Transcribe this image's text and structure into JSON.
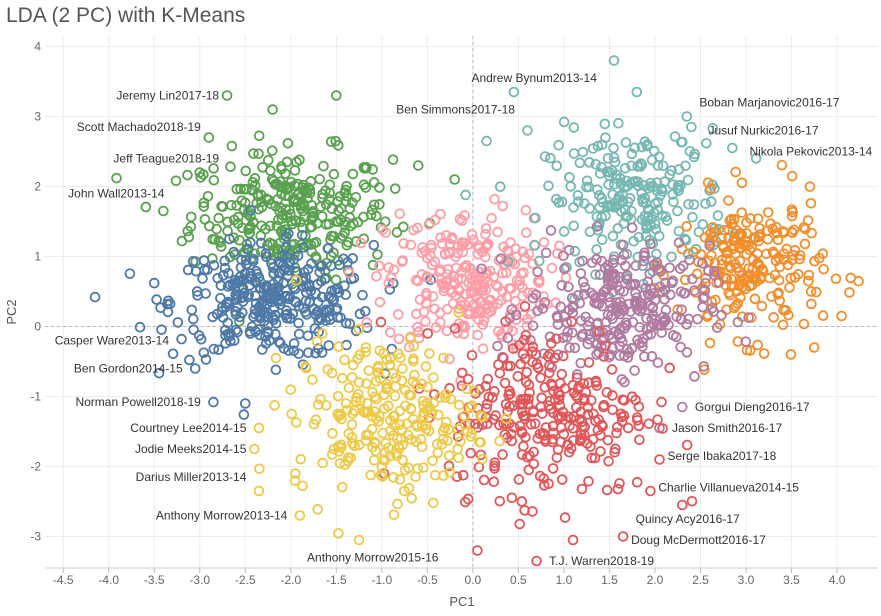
{
  "chart_data": {
    "type": "scatter",
    "title": "LDA (2  PC) with K-Means",
    "xlabel": "PC1",
    "ylabel": "PC2",
    "xlim": [
      -4.7,
      4.45
    ],
    "ylim": [
      -3.45,
      4.15
    ],
    "xticks": [
      -4.5,
      -4.0,
      -3.5,
      -3.0,
      -2.5,
      -2.0,
      -1.5,
      -1.0,
      -0.5,
      0.0,
      0.5,
      1.0,
      1.5,
      2.0,
      2.5,
      3.0,
      3.5,
      4.0
    ],
    "yticks": [
      -3,
      -2,
      -1,
      0,
      1,
      2,
      3,
      4
    ],
    "tick_labels_x": [
      "-4.5",
      "-4.0",
      "-3.5",
      "-3.0",
      "-2.5",
      "-2.0",
      "-1.5",
      "-1.0",
      "-0.5",
      "0.0",
      "0.5",
      "1.0",
      "1.5",
      "2.0",
      "2.5",
      "3.0",
      "3.5",
      "4.0"
    ],
    "tick_labels_y": [
      "-3",
      "-2",
      "-1",
      "0",
      "1",
      "2",
      "3",
      "4"
    ],
    "grid": true,
    "legend": "none",
    "marker": "open-circle",
    "series": [
      {
        "color": "#59a14f",
        "cx": -2.0,
        "cy": 1.6,
        "sx": 0.55,
        "sy": 0.45,
        "n": 300,
        "outliers": [
          [
            -2.7,
            3.3
          ],
          [
            -2.9,
            2.7
          ],
          [
            -3.0,
            2.2
          ],
          [
            -3.4,
            1.65
          ],
          [
            -2.2,
            3.1
          ],
          [
            -1.5,
            3.3
          ],
          [
            -0.2,
            2.1
          ],
          [
            -0.6,
            2.3
          ]
        ]
      },
      {
        "color": "#4e79a7",
        "cx": -2.2,
        "cy": 0.35,
        "sx": 0.55,
        "sy": 0.4,
        "n": 320,
        "outliers": [
          [
            -4.15,
            0.42
          ],
          [
            -3.5,
            0.62
          ],
          [
            -3.2,
            -0.18
          ],
          [
            -3.05,
            -0.6
          ],
          [
            -2.85,
            -1.08
          ],
          [
            -2.5,
            -1.1
          ]
        ]
      },
      {
        "color": "#ff9da7",
        "cx": -0.05,
        "cy": 0.65,
        "sx": 0.45,
        "sy": 0.5,
        "n": 260,
        "outliers": []
      },
      {
        "color": "#76b7b2",
        "cx": 1.8,
        "cy": 1.8,
        "sx": 0.5,
        "sy": 0.5,
        "n": 230,
        "outliers": [
          [
            1.55,
            3.8
          ],
          [
            1.8,
            3.35
          ],
          [
            0.45,
            3.35
          ],
          [
            2.35,
            3.0
          ],
          [
            2.4,
            2.85
          ],
          [
            2.85,
            2.55
          ],
          [
            0.6,
            2.8
          ],
          [
            0.15,
            2.65
          ]
        ]
      },
      {
        "color": "#f28e2b",
        "cx": 3.05,
        "cy": 0.85,
        "sx": 0.4,
        "sy": 0.5,
        "n": 220,
        "outliers": [
          [
            3.75,
            -0.3
          ],
          [
            4.05,
            0.15
          ]
        ]
      },
      {
        "color": "#b07aa1",
        "cx": 1.6,
        "cy": 0.25,
        "sx": 0.5,
        "sy": 0.45,
        "n": 280,
        "outliers": [
          [
            2.3,
            -1.15
          ],
          [
            2.05,
            -1.45
          ]
        ]
      },
      {
        "color": "#e15759",
        "cx": 0.85,
        "cy": -1.2,
        "sx": 0.55,
        "sy": 0.6,
        "n": 280,
        "outliers": [
          [
            2.05,
            -1.9
          ],
          [
            1.95,
            -2.35
          ],
          [
            1.65,
            -3.0
          ],
          [
            1.1,
            -3.05
          ],
          [
            0.7,
            -3.35
          ],
          [
            0.05,
            -3.2
          ],
          [
            2.3,
            -2.55
          ]
        ]
      },
      {
        "color": "#edc948",
        "cx": -0.95,
        "cy": -1.3,
        "sx": 0.5,
        "sy": 0.55,
        "n": 240,
        "outliers": [
          [
            -2.35,
            -1.45
          ],
          [
            -2.4,
            -1.75
          ],
          [
            -2.35,
            -2.35
          ],
          [
            -1.95,
            -2.1
          ],
          [
            -1.9,
            -2.7
          ],
          [
            -1.25,
            -3.05
          ],
          [
            -1.65,
            -1.95
          ]
        ]
      }
    ],
    "annotations": [
      {
        "text": "Jeremy Lin2017-18",
        "x": -2.7,
        "y": 3.3,
        "anchor": "end"
      },
      {
        "text": "Scott Machado2018-19",
        "x": -2.9,
        "y": 2.85,
        "anchor": "end"
      },
      {
        "text": "Jeff Teague2018-19",
        "x": -2.7,
        "y": 2.4,
        "anchor": "end"
      },
      {
        "text": "John Wall2013-14",
        "x": -3.3,
        "y": 1.9,
        "anchor": "end"
      },
      {
        "text": "Casper Ware2013-14",
        "x": -3.25,
        "y": -0.2,
        "anchor": "end"
      },
      {
        "text": "Ben Gordon2014-15",
        "x": -3.1,
        "y": -0.6,
        "anchor": "end"
      },
      {
        "text": "Norman Powell2018-19",
        "x": -2.9,
        "y": -1.08,
        "anchor": "end"
      },
      {
        "text": "Courtney Lee2014-15",
        "x": -2.4,
        "y": -1.45,
        "anchor": "end"
      },
      {
        "text": "Jodie Meeks2014-15",
        "x": -2.4,
        "y": -1.75,
        "anchor": "end"
      },
      {
        "text": "Darius Miller2013-14",
        "x": -2.4,
        "y": -2.15,
        "anchor": "end"
      },
      {
        "text": "Anthony Morrow2013-14",
        "x": -1.95,
        "y": -2.7,
        "anchor": "end"
      },
      {
        "text": "Anthony Morrow2015-16",
        "x": -1.1,
        "y": -3.3,
        "anchor": "middle"
      },
      {
        "text": "Andrew Bynum2013-14",
        "x": 1.45,
        "y": 3.55,
        "anchor": "end"
      },
      {
        "text": "Ben Simmons2017-18",
        "x": 0.55,
        "y": 3.1,
        "anchor": "end"
      },
      {
        "text": "Boban Marjanovic2016-17",
        "x": 2.4,
        "y": 3.2,
        "anchor": "start"
      },
      {
        "text": "Jusuf Nurkic2016-17",
        "x": 2.5,
        "y": 2.8,
        "anchor": "start"
      },
      {
        "text": "Nikola Pekovic2013-14",
        "x": 2.95,
        "y": 2.5,
        "anchor": "start"
      },
      {
        "text": "Gorgui Dieng2016-17",
        "x": 2.35,
        "y": -1.15,
        "anchor": "start"
      },
      {
        "text": "Jason Smith2016-17",
        "x": 2.1,
        "y": -1.45,
        "anchor": "start"
      },
      {
        "text": "Serge Ibaka2017-18",
        "x": 2.05,
        "y": -1.85,
        "anchor": "start"
      },
      {
        "text": "Charlie Villanueva2014-15",
        "x": 1.95,
        "y": -2.3,
        "anchor": "start"
      },
      {
        "text": "Quincy Acy2016-17",
        "x": 1.7,
        "y": -2.75,
        "anchor": "start"
      },
      {
        "text": "Doug McDermott2016-17",
        "x": 1.65,
        "y": -3.05,
        "anchor": "start"
      },
      {
        "text": "T.J. Warren2018-19",
        "x": 0.75,
        "y": -3.35,
        "anchor": "start"
      }
    ]
  }
}
